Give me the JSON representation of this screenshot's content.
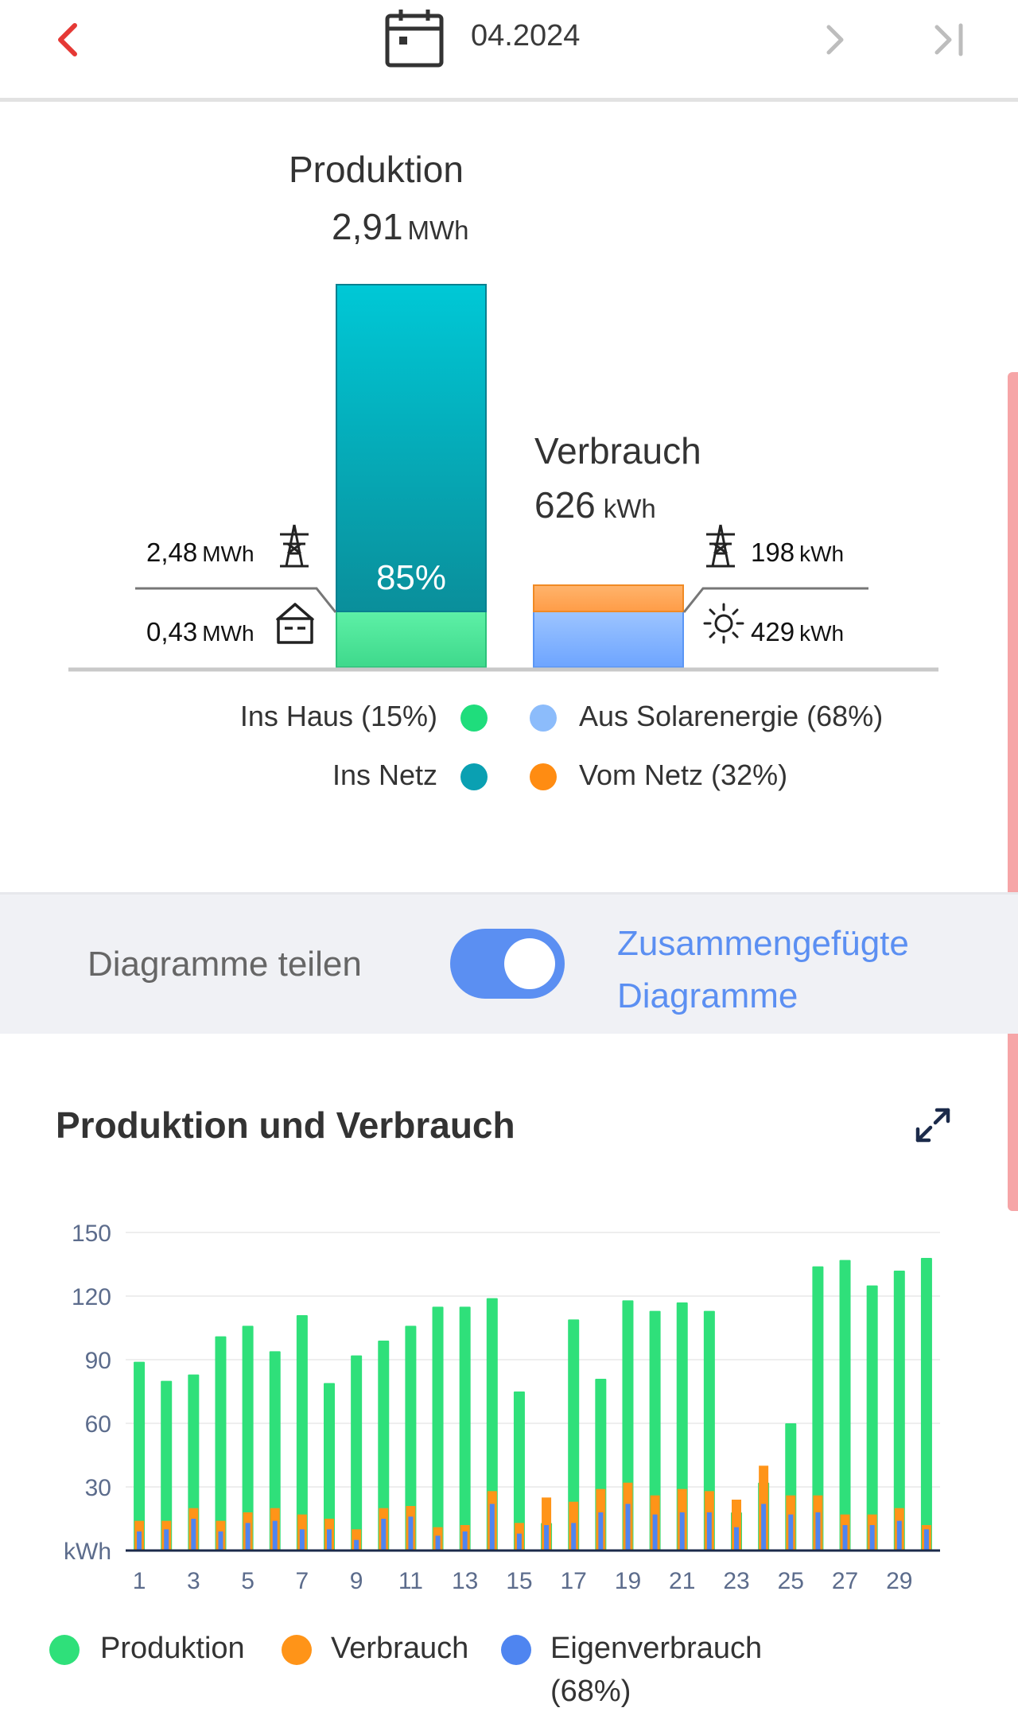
{
  "header": {
    "date": "04.2024"
  },
  "summary": {
    "production_title": "Produktion",
    "production_value": "2,91",
    "production_unit": "MWh",
    "grid_percent": "85%",
    "consumption_title": "Verbrauch",
    "consumption_value": "626",
    "consumption_unit": "kWh",
    "left_top_value": "2,48",
    "left_top_unit": "MWh",
    "left_bottom_value": "0,43",
    "left_bottom_unit": "MWh",
    "right_top_value": "198",
    "right_top_unit": "kWh",
    "right_bottom_value": "429",
    "right_bottom_unit": "kWh",
    "legend": {
      "ins_haus": "Ins Haus (15%)",
      "ins_netz": "Ins Netz",
      "aus_solar": "Aus Solarenergie (68%)",
      "vom_netz": "Vom Netz (32%)"
    }
  },
  "toggle": {
    "left_label": "Diagramme teilen",
    "right_label_line1": "Zusammengefügte",
    "right_label_line2": "Diagramme",
    "checked": true
  },
  "chart_title": "Produktion und Verbrauch",
  "chart_data": {
    "type": "bar",
    "ylabel": "kWh",
    "ylim": [
      0,
      150
    ],
    "yticks": [
      30,
      60,
      90,
      120,
      150
    ],
    "x": [
      1,
      2,
      3,
      4,
      5,
      6,
      7,
      8,
      9,
      10,
      11,
      12,
      13,
      14,
      15,
      16,
      17,
      18,
      19,
      20,
      21,
      22,
      23,
      24,
      25,
      26,
      27,
      28,
      29,
      30
    ],
    "xtick_labels": [
      "1",
      "3",
      "5",
      "7",
      "9",
      "11",
      "13",
      "15",
      "17",
      "19",
      "21",
      "23",
      "25",
      "27",
      "29"
    ],
    "series": [
      {
        "name": "Produktion",
        "color": "#2fe07a",
        "values": [
          89,
          80,
          83,
          101,
          106,
          94,
          111,
          79,
          92,
          99,
          106,
          115,
          115,
          119,
          75,
          13,
          109,
          81,
          118,
          113,
          117,
          113,
          18,
          32,
          60,
          134,
          137,
          125,
          132,
          138
        ]
      },
      {
        "name": "Verbrauch",
        "color": "#ff9418",
        "values": [
          14,
          14,
          20,
          14,
          18,
          20,
          17,
          15,
          10,
          20,
          21,
          11,
          12,
          28,
          13,
          25,
          23,
          29,
          32,
          26,
          29,
          28,
          24,
          40,
          26,
          26,
          17,
          17,
          20,
          12
        ]
      },
      {
        "name": "Eigenverbrauch",
        "color": "#4f85f0",
        "values": [
          9,
          10,
          15,
          9,
          13,
          14,
          10,
          10,
          5,
          15,
          16,
          7,
          9,
          22,
          8,
          12,
          13,
          18,
          22,
          17,
          18,
          18,
          11,
          22,
          17,
          18,
          12,
          12,
          14,
          10
        ]
      }
    ]
  },
  "chart_legend": {
    "production": "Produktion",
    "consumption": "Verbrauch",
    "self_consumption": "Eigenverbrauch",
    "self_consumption_pct": "(68%)"
  },
  "colors": {
    "accent_red": "#e53935",
    "toggle_blue": "#5b8ff2",
    "ins_haus": "#1fdd7c",
    "ins_netz": "#0aa0b2",
    "aus_solar": "#8cbcfb",
    "vom_netz": "#ff8c12"
  }
}
